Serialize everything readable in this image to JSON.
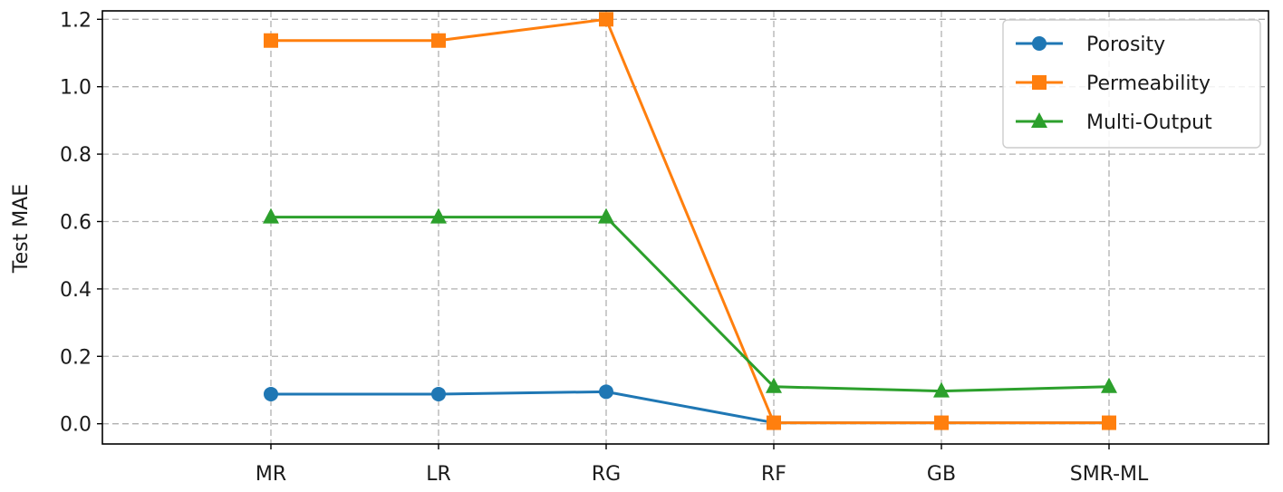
{
  "chart_data": {
    "type": "line",
    "title": "",
    "xlabel": "",
    "ylabel": "Test MAE",
    "categories": [
      "MR",
      "LR",
      "RG",
      "RF",
      "GB",
      "SMR-ML"
    ],
    "ylim": [
      -0.06,
      1.225
    ],
    "yticks": [
      "0.0",
      "0.2",
      "0.4",
      "0.6",
      "0.8",
      "1.0",
      "1.2"
    ],
    "grid": true,
    "legend_position": "top-right",
    "series": [
      {
        "name": "Porosity",
        "color": "#1f77b4",
        "marker": "circle",
        "values": [
          0.088,
          0.088,
          0.095,
          0.003,
          0.003,
          0.003
        ]
      },
      {
        "name": "Permeability",
        "color": "#ff7f0e",
        "marker": "square",
        "values": [
          1.137,
          1.137,
          1.2,
          0.003,
          0.003,
          0.003
        ]
      },
      {
        "name": "Multi-Output",
        "color": "#2ca02c",
        "marker": "triangle",
        "values": [
          0.613,
          0.613,
          0.613,
          0.11,
          0.097,
          0.11
        ]
      }
    ]
  }
}
